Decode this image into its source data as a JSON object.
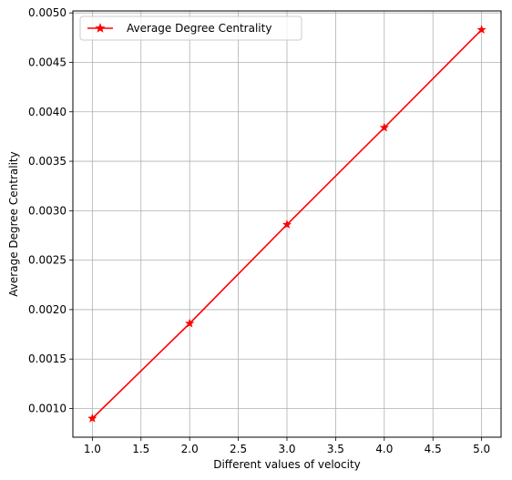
{
  "chart_data": {
    "type": "line",
    "x": [
      1.0,
      2.0,
      3.0,
      4.0,
      5.0
    ],
    "series": [
      {
        "name": "Average Degree Centrality",
        "values": [
          0.0009,
          0.00186,
          0.00286,
          0.00384,
          0.00483
        ],
        "color": "#ff0000",
        "marker": "star"
      }
    ],
    "xlabel": "Different values of velocity",
    "ylabel": "Average Degree Centrality",
    "xlim": [
      0.8,
      5.2
    ],
    "ylim": [
      0.00071,
      0.00502
    ],
    "xticks": [
      1.0,
      1.5,
      2.0,
      2.5,
      3.0,
      3.5,
      4.0,
      4.5,
      5.0
    ],
    "xtick_labels": [
      "1.0",
      "1.5",
      "2.0",
      "2.5",
      "3.0",
      "3.5",
      "4.0",
      "4.5",
      "5.0"
    ],
    "yticks": [
      0.001,
      0.0015,
      0.002,
      0.0025,
      0.003,
      0.0035,
      0.004,
      0.0045,
      0.005
    ],
    "ytick_labels": [
      "0.0010",
      "0.0015",
      "0.0020",
      "0.0025",
      "0.0030",
      "0.0035",
      "0.0040",
      "0.0045",
      "0.0050"
    ],
    "grid": true,
    "legend_position": "top-left"
  }
}
